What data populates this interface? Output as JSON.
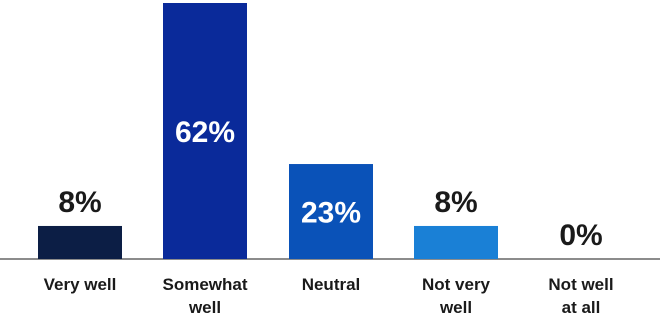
{
  "chart_data": {
    "type": "bar",
    "title": "",
    "xlabel": "",
    "ylabel": "",
    "ylim": [
      0,
      62
    ],
    "grid": false,
    "legend": "none",
    "categories": [
      "Very well",
      "Somewhat well",
      "Neutral",
      "Not very well",
      "Not well at all"
    ],
    "category_lines": [
      [
        "Very well"
      ],
      [
        "Somewhat",
        "well"
      ],
      [
        "Neutral"
      ],
      [
        "Not very",
        "well"
      ],
      [
        "Not well",
        "at all"
      ]
    ],
    "values": [
      8,
      62,
      23,
      8,
      0
    ],
    "value_labels": [
      "8%",
      "62%",
      "23%",
      "8%",
      "0%"
    ],
    "bar_colors": [
      "#0c1e45",
      "#0a2a9a",
      "#0a52b8",
      "#1a80d6",
      "#1a80d6"
    ],
    "label_inside": [
      false,
      true,
      true,
      false,
      false
    ],
    "inside_label_color": "#ffffff",
    "outside_label_color": "#1a1a1a",
    "baseline_color": "#1a1a1a"
  }
}
